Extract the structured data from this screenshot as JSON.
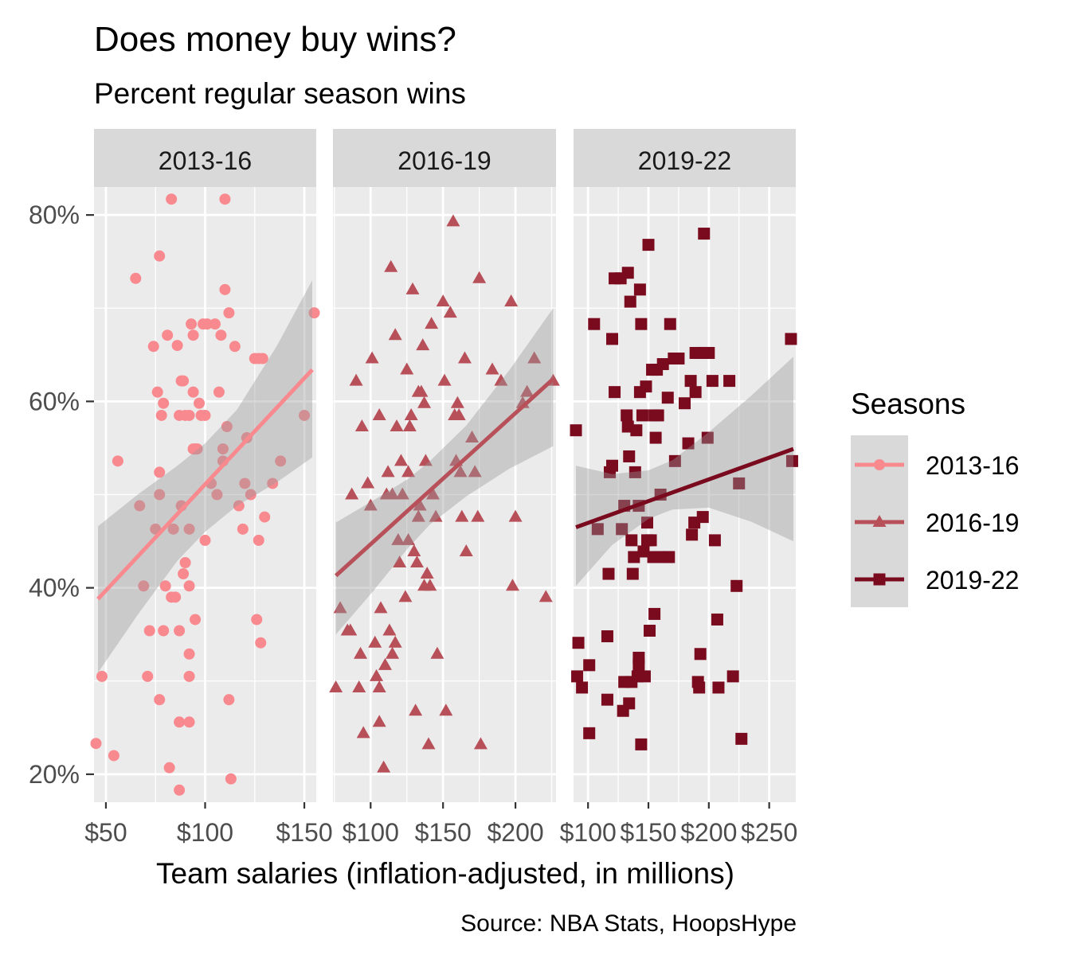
{
  "chart_data": {
    "type": "scatter",
    "title": "Does money buy wins?",
    "subtitle": "Percent regular season wins",
    "xlabel": "Team salaries (inflation-adjusted, in millions)",
    "ylabel": "",
    "caption": "Source: NBA Stats, HoopsHype",
    "y_ticks": [
      "20%",
      "40%",
      "60%",
      "80%"
    ],
    "y_tick_values": [
      20,
      40,
      60,
      80
    ],
    "ylim": [
      17,
      83
    ],
    "grid": true,
    "legend": {
      "title": "Seasons",
      "position": "right"
    },
    "colors": {
      "2013-16": "#F8898F",
      "2016-19": "#B8505A",
      "2019-22": "#7A0A1E",
      "ribbon": "#999999",
      "panel": "#EBEBEB",
      "strip": "#D9D9D9"
    },
    "series": [
      {
        "name": "2013-16",
        "marker": "circle",
        "xlim": [
          44,
          156
        ],
        "x_ticks": [
          "$50",
          "$100",
          "$150"
        ],
        "x_tick_values": [
          50,
          100,
          150
        ],
        "fit": {
          "x": [
            46,
            154
          ],
          "y": [
            38.8,
            63.4
          ]
        },
        "band": {
          "x": [
            46,
            66,
            86,
            100,
            116,
            136,
            154
          ],
          "upper": [
            46.6,
            50.0,
            53.1,
            55.5,
            59.1,
            65.9,
            73.0
          ],
          "lower": [
            30.9,
            37.1,
            42.9,
            46.0,
            48.8,
            51.3,
            54.0
          ]
        },
        "points": [
          [
            45,
            23.3
          ],
          [
            48,
            30.5
          ],
          [
            54,
            22.0
          ],
          [
            56,
            53.6
          ],
          [
            65,
            73.2
          ],
          [
            67,
            48.8
          ],
          [
            69,
            40.2
          ],
          [
            71,
            30.5
          ],
          [
            72,
            35.4
          ],
          [
            74,
            65.9
          ],
          [
            75,
            46.3
          ],
          [
            76,
            61.0
          ],
          [
            77,
            52.4
          ],
          [
            77,
            75.6
          ],
          [
            77,
            28.0
          ],
          [
            77,
            50.0
          ],
          [
            78,
            58.5
          ],
          [
            79,
            35.4
          ],
          [
            79,
            59.8
          ],
          [
            80,
            40.2
          ],
          [
            81,
            67.1
          ],
          [
            82,
            20.7
          ],
          [
            83,
            81.7
          ],
          [
            83,
            39.0
          ],
          [
            84,
            46.3
          ],
          [
            85,
            39.0
          ],
          [
            86,
            66.0
          ],
          [
            87,
            18.3
          ],
          [
            87,
            35.4
          ],
          [
            87,
            25.6
          ],
          [
            87,
            58.5
          ],
          [
            88,
            62.2
          ],
          [
            88,
            48.8
          ],
          [
            89,
            62.2
          ],
          [
            89,
            41.5
          ],
          [
            90,
            58.5
          ],
          [
            90,
            42.7
          ],
          [
            92,
            58.5
          ],
          [
            92,
            40.2
          ],
          [
            92,
            46.3
          ],
          [
            92,
            30.5
          ],
          [
            92,
            25.6
          ],
          [
            92,
            32.9
          ],
          [
            93,
            68.3
          ],
          [
            94,
            67.1
          ],
          [
            94,
            61.0
          ],
          [
            94,
            54.9
          ],
          [
            95,
            54.9
          ],
          [
            95,
            36.6
          ],
          [
            96,
            54.9
          ],
          [
            97,
            59.8
          ],
          [
            98,
            58.5
          ],
          [
            99,
            68.3
          ],
          [
            100,
            45.1
          ],
          [
            100,
            58.5
          ],
          [
            101,
            68.3
          ],
          [
            103,
            51.2
          ],
          [
            105,
            68.3
          ],
          [
            106,
            50.0
          ],
          [
            107,
            61.0
          ],
          [
            108,
            67.1
          ],
          [
            109,
            53.6
          ],
          [
            109,
            54.9
          ],
          [
            110,
            81.7
          ],
          [
            110,
            72.0
          ],
          [
            111,
            57.3
          ],
          [
            112,
            69.5
          ],
          [
            112,
            28.0
          ],
          [
            113,
            19.5
          ],
          [
            115,
            65.9
          ],
          [
            117,
            48.8
          ],
          [
            119,
            46.3
          ],
          [
            120,
            51.2
          ],
          [
            121,
            56.1
          ],
          [
            123,
            50.0
          ],
          [
            125,
            64.6
          ],
          [
            126,
            36.6
          ],
          [
            127,
            45.1
          ],
          [
            127,
            64.6
          ],
          [
            128,
            34.1
          ],
          [
            129,
            64.6
          ],
          [
            130,
            47.6
          ],
          [
            134,
            51.2
          ],
          [
            138,
            53.6
          ],
          [
            150,
            58.5
          ],
          [
            155,
            69.5
          ]
        ]
      },
      {
        "name": "2016-19",
        "marker": "triangle",
        "xlim": [
          74,
          228
        ],
        "x_ticks": [
          "$100",
          "$150",
          "$200"
        ],
        "x_tick_values": [
          100,
          150,
          200
        ],
        "fit": {
          "x": [
            76,
            226
          ],
          "y": [
            41.3,
            62.4
          ]
        },
        "band": {
          "x": [
            76,
            101,
            126,
            141,
            166,
            196,
            226
          ],
          "upper": [
            47.0,
            49.3,
            51.7,
            53.6,
            57.4,
            63.4,
            70.0
          ],
          "lower": [
            35.0,
            39.5,
            44.3,
            46.8,
            49.8,
            52.8,
            55.2
          ]
        },
        "points": [
          [
            76,
            29.3
          ],
          [
            79,
            37.8
          ],
          [
            84,
            35.4
          ],
          [
            86,
            35.4
          ],
          [
            87,
            50.0
          ],
          [
            90,
            62.2
          ],
          [
            92,
            29.3
          ],
          [
            93,
            32.9
          ],
          [
            94,
            57.3
          ],
          [
            95,
            24.4
          ],
          [
            98,
            51.2
          ],
          [
            100,
            48.8
          ],
          [
            101,
            64.6
          ],
          [
            103,
            34.1
          ],
          [
            104,
            30.5
          ],
          [
            106,
            25.6
          ],
          [
            106,
            58.5
          ],
          [
            106,
            29.3
          ],
          [
            107,
            37.8
          ],
          [
            109,
            20.7
          ],
          [
            110,
            31.7
          ],
          [
            111,
            50.0
          ],
          [
            112,
            52.4
          ],
          [
            113,
            35.4
          ],
          [
            114,
            74.4
          ],
          [
            115,
            32.9
          ],
          [
            115,
            50.0
          ],
          [
            117,
            67.1
          ],
          [
            117,
            34.1
          ],
          [
            118,
            57.3
          ],
          [
            119,
            45.1
          ],
          [
            120,
            42.7
          ],
          [
            121,
            53.6
          ],
          [
            122,
            50.0
          ],
          [
            124,
            39.0
          ],
          [
            125,
            63.4
          ],
          [
            126,
            45.1
          ],
          [
            126,
            52.4
          ],
          [
            127,
            57.3
          ],
          [
            128,
            58.5
          ],
          [
            129,
            72.0
          ],
          [
            130,
            43.9
          ],
          [
            131,
            26.8
          ],
          [
            132,
            42.7
          ],
          [
            133,
            61.0
          ],
          [
            133,
            47.6
          ],
          [
            134,
            48.8
          ],
          [
            135,
            61.0
          ],
          [
            136,
            66.0
          ],
          [
            137,
            59.8
          ],
          [
            137,
            40.2
          ],
          [
            138,
            53.6
          ],
          [
            139,
            41.5
          ],
          [
            140,
            23.2
          ],
          [
            141,
            40.2
          ],
          [
            142,
            68.3
          ],
          [
            143,
            50.0
          ],
          [
            145,
            47.6
          ],
          [
            146,
            32.9
          ],
          [
            150,
            70.7
          ],
          [
            151,
            62.2
          ],
          [
            152,
            26.8
          ],
          [
            155,
            69.5
          ],
          [
            157,
            79.3
          ],
          [
            158,
            58.5
          ],
          [
            159,
            53.6
          ],
          [
            160,
            59.8
          ],
          [
            161,
            58.5
          ],
          [
            162,
            52.4
          ],
          [
            163,
            47.6
          ],
          [
            165,
            64.6
          ],
          [
            166,
            43.9
          ],
          [
            170,
            56.1
          ],
          [
            172,
            52.4
          ],
          [
            174,
            47.6
          ],
          [
            175,
            73.2
          ],
          [
            176,
            23.2
          ],
          [
            184,
            63.4
          ],
          [
            190,
            62.2
          ],
          [
            197,
            70.7
          ],
          [
            198,
            40.2
          ],
          [
            200,
            47.6
          ],
          [
            205,
            59.8
          ],
          [
            208,
            61.0
          ],
          [
            213,
            64.6
          ],
          [
            221,
            39.0
          ],
          [
            226,
            62.2
          ]
        ]
      },
      {
        "name": "2019-22",
        "marker": "square",
        "xlim": [
          88,
          272
        ],
        "x_ticks": [
          "$100",
          "$150",
          "$200",
          "$250"
        ],
        "x_tick_values": [
          100,
          150,
          200,
          250
        ],
        "fit": {
          "x": [
            90,
            270
          ],
          "y": [
            46.5,
            54.9
          ]
        },
        "band": {
          "x": [
            90,
            120,
            150,
            170,
            200,
            235,
            270
          ],
          "upper": [
            53.1,
            52.2,
            52.6,
            53.7,
            56.7,
            60.6,
            64.8
          ],
          "lower": [
            40.2,
            44.6,
            47.4,
            48.4,
            48.6,
            47.1,
            45.0
          ]
        },
        "points": [
          [
            90,
            56.9
          ],
          [
            91,
            30.5
          ],
          [
            92,
            34.1
          ],
          [
            95,
            29.3
          ],
          [
            101,
            31.7
          ],
          [
            101,
            24.4
          ],
          [
            105,
            68.3
          ],
          [
            108,
            46.3
          ],
          [
            116,
            28.0
          ],
          [
            116,
            34.8
          ],
          [
            117,
            41.5
          ],
          [
            118,
            52.4
          ],
          [
            120,
            53.1
          ],
          [
            120,
            66.7
          ],
          [
            122,
            73.2
          ],
          [
            122,
            61.0
          ],
          [
            127,
            73.2
          ],
          [
            128,
            46.3
          ],
          [
            129,
            26.8
          ],
          [
            130,
            48.8
          ],
          [
            130,
            29.9
          ],
          [
            132,
            58.5
          ],
          [
            133,
            57.3
          ],
          [
            133,
            73.8
          ],
          [
            134,
            54.1
          ],
          [
            134,
            27.6
          ],
          [
            135,
            70.7
          ],
          [
            136,
            45.1
          ],
          [
            136,
            29.9
          ],
          [
            137,
            41.5
          ],
          [
            138,
            43.3
          ],
          [
            139,
            52.4
          ],
          [
            140,
            56.9
          ],
          [
            141,
            30.5
          ],
          [
            142,
            32.5
          ],
          [
            142,
            31.7
          ],
          [
            142,
            48.8
          ],
          [
            143,
            61.0
          ],
          [
            143,
            72.0
          ],
          [
            144,
            68.3
          ],
          [
            144,
            23.2
          ],
          [
            145,
            58.5
          ],
          [
            146,
            43.9
          ],
          [
            147,
            30.5
          ],
          [
            148,
            61.6
          ],
          [
            149,
            47.0
          ],
          [
            149,
            45.1
          ],
          [
            150,
            76.8
          ],
          [
            151,
            35.4
          ],
          [
            152,
            45.1
          ],
          [
            153,
            63.4
          ],
          [
            154,
            43.3
          ],
          [
            155,
            37.2
          ],
          [
            155,
            58.5
          ],
          [
            156,
            56.1
          ],
          [
            157,
            63.4
          ],
          [
            158,
            58.5
          ],
          [
            160,
            50.0
          ],
          [
            160,
            43.3
          ],
          [
            162,
            64.0
          ],
          [
            165,
            43.3
          ],
          [
            166,
            60.4
          ],
          [
            167,
            43.3
          ],
          [
            168,
            68.3
          ],
          [
            171,
            64.6
          ],
          [
            172,
            53.6
          ],
          [
            175,
            64.6
          ],
          [
            180,
            59.8
          ],
          [
            183,
            55.5
          ],
          [
            185,
            62.2
          ],
          [
            186,
            45.7
          ],
          [
            188,
            47.0
          ],
          [
            189,
            61.0
          ],
          [
            189,
            65.2
          ],
          [
            191,
            29.9
          ],
          [
            192,
            29.3
          ],
          [
            193,
            32.9
          ],
          [
            194,
            65.2
          ],
          [
            195,
            47.6
          ],
          [
            196,
            78.0
          ],
          [
            197,
            65.2
          ],
          [
            199,
            56.1
          ],
          [
            200,
            65.2
          ],
          [
            203,
            62.2
          ],
          [
            205,
            45.1
          ],
          [
            207,
            36.6
          ],
          [
            208,
            29.3
          ],
          [
            217,
            62.2
          ],
          [
            220,
            30.5
          ],
          [
            223,
            40.2
          ],
          [
            225,
            51.2
          ],
          [
            227,
            23.8
          ],
          [
            268,
            66.7
          ],
          [
            269,
            53.6
          ]
        ]
      }
    ]
  }
}
